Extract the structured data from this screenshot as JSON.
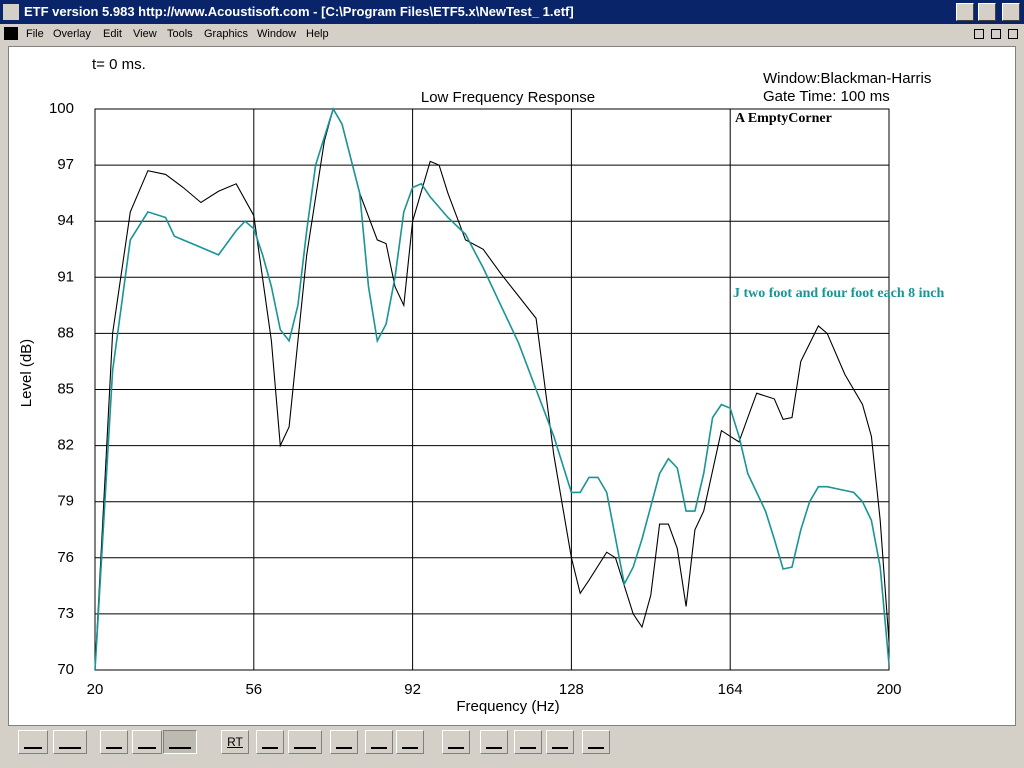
{
  "window": {
    "title": "ETF version 5.983 http://www.Acoustisoft.com - [C:\\Program Files\\ETF5.x\\NewTest_ 1.etf]",
    "menu": [
      "File",
      "Overlay",
      "Edit",
      "View",
      "Tools",
      "Graphics",
      "Window",
      "Help"
    ],
    "toolbar_text": "RT"
  },
  "chart_data": {
    "type": "line",
    "title": "Low Frequency Response",
    "annotations": [
      "t= 0 ms.",
      "Window:Blackman-Harris",
      "Gate Time: 100 ms"
    ],
    "x_label": "Frequency (Hz)",
    "y_label": "Level (dB)",
    "xlim": [
      20,
      200
    ],
    "xticks": [
      20,
      56,
      92,
      128,
      164,
      200
    ],
    "ylim": [
      70,
      100
    ],
    "yticks": [
      70,
      73,
      76,
      79,
      82,
      85,
      88,
      91,
      94,
      97,
      100
    ],
    "grid": true,
    "series": [
      {
        "name": "A EmptyCorner",
        "color": "#000000",
        "x": [
          20,
          24,
          28,
          32,
          36,
          40,
          44,
          48,
          52,
          56,
          60,
          62,
          64,
          68,
          72,
          74,
          76,
          80,
          84,
          86,
          88,
          90,
          92,
          96,
          98,
          100,
          104,
          108,
          112,
          116,
          120,
          124,
          128,
          130,
          132,
          136,
          138,
          142,
          144,
          146,
          148,
          150,
          152,
          154,
          156,
          158,
          162,
          164,
          166,
          168,
          170,
          174,
          176,
          178,
          180,
          184,
          186,
          190,
          194,
          196,
          198,
          200
        ],
        "values": [
          70,
          88,
          94.5,
          96.7,
          96.5,
          95.8,
          95.0,
          95.6,
          96.0,
          94.3,
          87.6,
          82.0,
          83.0,
          92.2,
          98.3,
          100,
          99.2,
          95.5,
          93.0,
          92.8,
          90.5,
          89.5,
          94.0,
          97.2,
          97.0,
          95.5,
          93.0,
          92.5,
          91.2,
          90.0,
          88.8,
          81.5,
          76.0,
          74.1,
          74.8,
          76.3,
          76.0,
          73.0,
          72.3,
          74.0,
          77.8,
          77.8,
          76.5,
          73.4,
          77.5,
          78.5,
          82.8,
          82.5,
          82.2,
          83.5,
          84.8,
          84.5,
          83.4,
          83.5,
          86.5,
          88.4,
          88.0,
          85.8,
          84.2,
          82.5,
          78.0,
          71.5
        ]
      },
      {
        "name": "J two foot and four foot each 8 inch",
        "color": "#1a9494",
        "x": [
          20,
          24,
          28,
          32,
          36,
          38,
          42,
          44,
          48,
          52,
          54,
          56,
          58,
          60,
          62,
          64,
          66,
          68,
          70,
          74,
          76,
          80,
          82,
          84,
          86,
          88,
          90,
          92,
          94,
          96,
          100,
          104,
          108,
          112,
          116,
          120,
          124,
          128,
          130,
          132,
          134,
          136,
          140,
          142,
          144,
          148,
          150,
          152,
          154,
          156,
          158,
          160,
          162,
          164,
          166,
          168,
          172,
          174,
          176,
          178,
          180,
          182,
          184,
          186,
          190,
          192,
          194,
          196,
          198,
          200
        ],
        "values": [
          70,
          86,
          93,
          94.5,
          94.2,
          93.2,
          92.8,
          92.6,
          92.2,
          93.5,
          94.0,
          93.6,
          92.2,
          90.5,
          88.2,
          87.6,
          89.5,
          93.5,
          97,
          100,
          99.2,
          95.5,
          90.5,
          87.6,
          88.5,
          91,
          94.5,
          95.8,
          96.0,
          95.3,
          94.2,
          93.3,
          91.5,
          89.5,
          87.5,
          85,
          82.5,
          79.5,
          79.5,
          80.3,
          80.3,
          79.5,
          74.6,
          75.5,
          77,
          80.5,
          81.3,
          80.8,
          78.5,
          78.5,
          80.5,
          83.5,
          84.2,
          84.0,
          82.5,
          80.5,
          78.5,
          77.0,
          75.4,
          75.5,
          77.5,
          79.0,
          79.8,
          79.8,
          79.6,
          79.5,
          79.0,
          78.0,
          75.5,
          70.3
        ]
      }
    ]
  }
}
